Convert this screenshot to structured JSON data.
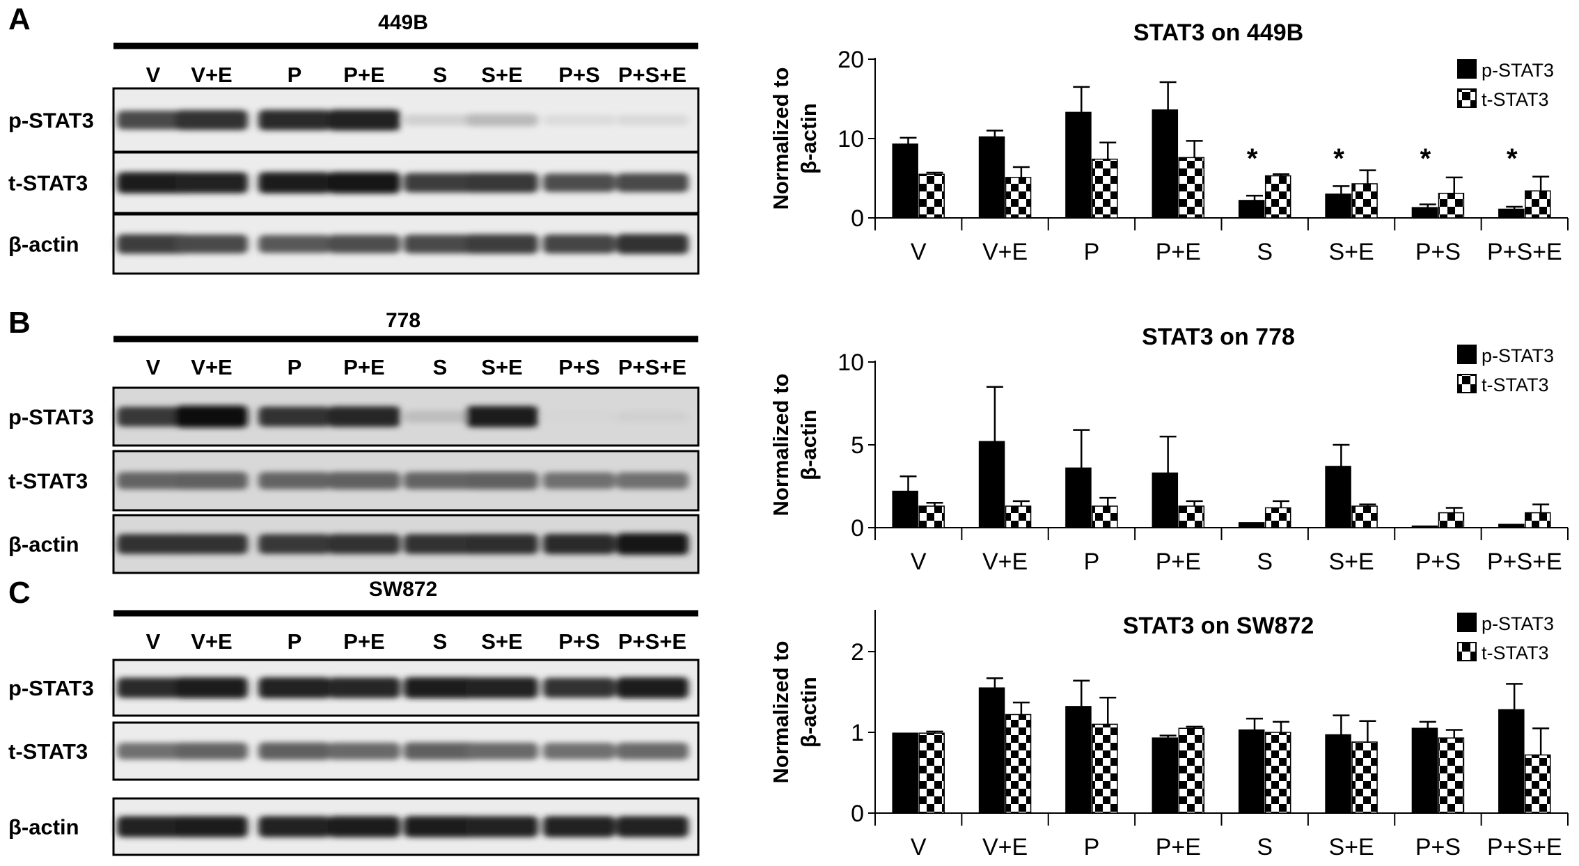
{
  "panels": [
    {
      "letter": "A",
      "cell_line": "449B",
      "lanes": [
        "V",
        "V+E",
        "P",
        "P+E",
        "S",
        "S+E",
        "P+S",
        "P+S+E"
      ],
      "blot_rows": [
        {
          "label": "p-STAT3",
          "intensity": [
            0.72,
            0.82,
            0.85,
            0.9,
            0.12,
            0.22,
            0.07,
            0.08
          ]
        },
        {
          "label": "t-STAT3",
          "intensity": [
            0.92,
            0.9,
            0.92,
            0.94,
            0.78,
            0.8,
            0.7,
            0.72
          ]
        },
        {
          "label": "β-actin",
          "intensity": [
            0.78,
            0.72,
            0.65,
            0.7,
            0.72,
            0.78,
            0.74,
            0.82
          ]
        }
      ]
    },
    {
      "letter": "B",
      "cell_line": "778",
      "lanes": [
        "V",
        "V+E",
        "P",
        "P+E",
        "S",
        "S+E",
        "P+S",
        "P+S+E"
      ],
      "blot_rows": [
        {
          "label": "p-STAT3",
          "intensity": [
            0.8,
            0.98,
            0.82,
            0.88,
            0.2,
            0.92,
            0.1,
            0.12
          ]
        },
        {
          "label": "t-STAT3",
          "intensity": [
            0.6,
            0.62,
            0.6,
            0.62,
            0.6,
            0.62,
            0.55,
            0.55
          ]
        },
        {
          "label": "β-actin",
          "intensity": [
            0.82,
            0.82,
            0.8,
            0.82,
            0.82,
            0.84,
            0.85,
            0.95
          ]
        }
      ]
    },
    {
      "letter": "C",
      "cell_line": "SW872",
      "lanes": [
        "V",
        "V+E",
        "P",
        "P+E",
        "S",
        "S+E",
        "P+S",
        "P+S+E"
      ],
      "blot_rows": [
        {
          "label": "p-STAT3",
          "intensity": [
            0.85,
            0.92,
            0.9,
            0.88,
            0.92,
            0.9,
            0.82,
            0.92
          ]
        },
        {
          "label": "t-STAT3",
          "intensity": [
            0.55,
            0.6,
            0.62,
            0.58,
            0.62,
            0.58,
            0.55,
            0.58
          ]
        },
        {
          "label": "β-actin",
          "intensity": [
            0.9,
            0.92,
            0.9,
            0.92,
            0.92,
            0.9,
            0.9,
            0.9
          ]
        }
      ]
    }
  ],
  "chart_data": [
    {
      "type": "bar",
      "title": "STAT3 on 449B",
      "ylabel_lines": [
        "Normalized to",
        "β-actin"
      ],
      "categories": [
        "V",
        "V+E",
        "P",
        "P+E",
        "S",
        "S+E",
        "P+S",
        "P+S+E"
      ],
      "ylim": [
        0,
        20
      ],
      "yticks": [
        "0",
        "10",
        "20"
      ],
      "series": [
        {
          "name": "p-STAT3",
          "pattern": "solid",
          "values": [
            9.3,
            10.2,
            13.3,
            13.6,
            2.2,
            3.0,
            1.3,
            1.1
          ],
          "errors": [
            0.8,
            0.8,
            3.2,
            3.5,
            0.6,
            1.0,
            0.4,
            0.3
          ]
        },
        {
          "name": "t-STAT3",
          "pattern": "checker",
          "values": [
            5.5,
            5.1,
            7.4,
            7.6,
            5.3,
            4.3,
            3.1,
            3.4
          ],
          "errors": [
            0.2,
            1.3,
            2.1,
            2.1,
            0.2,
            1.7,
            2.0,
            1.8
          ]
        }
      ],
      "asterisks": [
        "",
        "",
        "",
        "",
        "*",
        "*",
        "*",
        "*"
      ]
    },
    {
      "type": "bar",
      "title": "STAT3 on 778",
      "ylabel_lines": [
        "Normalized to",
        "β-actin"
      ],
      "categories": [
        "V",
        "V+E",
        "P",
        "P+E",
        "S",
        "S+E",
        "P+S",
        "P+S+E"
      ],
      "ylim": [
        0,
        10
      ],
      "yticks": [
        "0",
        "5",
        "10"
      ],
      "series": [
        {
          "name": "p-STAT3",
          "pattern": "solid",
          "values": [
            2.2,
            5.2,
            3.6,
            3.3,
            0.3,
            3.7,
            0.1,
            0.2
          ],
          "errors": [
            0.9,
            3.3,
            2.3,
            2.2,
            0,
            1.3,
            0,
            0
          ]
        },
        {
          "name": "t-STAT3",
          "pattern": "checker",
          "values": [
            1.3,
            1.3,
            1.3,
            1.3,
            1.2,
            1.3,
            0.9,
            0.9
          ],
          "errors": [
            0.2,
            0.3,
            0.5,
            0.3,
            0.4,
            0.1,
            0.3,
            0.5
          ]
        }
      ],
      "asterisks": [
        "",
        "",
        "",
        "",
        "",
        "",
        "",
        ""
      ]
    },
    {
      "type": "bar",
      "title": "STAT3 on SW872",
      "ylabel_lines": [
        "Normalized to",
        "β-actin"
      ],
      "categories": [
        "V",
        "V+E",
        "P",
        "P+E",
        "S",
        "S+E",
        "P+S",
        "P+S+E"
      ],
      "ylim": [
        0,
        2.5
      ],
      "yticks": [
        "0",
        "1",
        "2"
      ],
      "series": [
        {
          "name": "p-STAT3",
          "pattern": "solid",
          "values": [
            0.99,
            1.55,
            1.32,
            0.93,
            1.03,
            0.97,
            1.05,
            1.28
          ],
          "errors": [
            0,
            0.12,
            0.32,
            0.03,
            0.14,
            0.24,
            0.08,
            0.32
          ]
        },
        {
          "name": "t-STAT3",
          "pattern": "checker",
          "values": [
            0.99,
            1.22,
            1.1,
            1.05,
            1.0,
            0.88,
            0.93,
            0.72
          ],
          "errors": [
            0.02,
            0.15,
            0.33,
            0.02,
            0.13,
            0.26,
            0.1,
            0.33
          ]
        }
      ],
      "asterisks": [
        "",
        "",
        "",
        "",
        "",
        "",
        "",
        ""
      ]
    }
  ]
}
